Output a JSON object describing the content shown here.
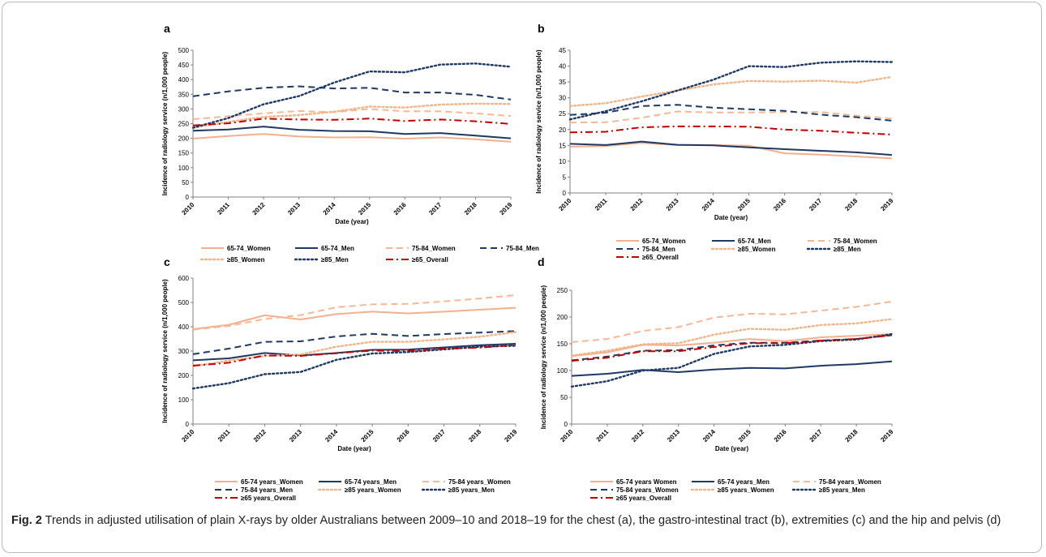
{
  "caption": {
    "fig_label": "Fig. 2",
    "text": "Trends in adjusted utilisation of plain X-rays by older Australians between 2009–10 and 2018–19 for the chest (a), the gastro-intestinal tract (b), extremities (c) and the hip and pelvis (d)"
  },
  "colors": {
    "women_solid": "#f3b08c",
    "men_navy": "#1f3864",
    "women_75_dash": "#f5b896",
    "women_85_dot": "#f4b489",
    "overall_red": "#c00000"
  },
  "chart_data": [
    {
      "panel": "a",
      "type": "line",
      "xlabel": "Date (year)",
      "ylabel": "Incidence of radiology service (n/1,000 people)",
      "ylim": [
        0,
        500
      ],
      "yticks": [
        0,
        50,
        100,
        150,
        200,
        250,
        300,
        350,
        400,
        450,
        500
      ],
      "x": [
        "2010",
        "2011",
        "2012",
        "2013",
        "2014",
        "2015",
        "2016",
        "2017",
        "2018",
        "2019"
      ],
      "legend_position": "bottom",
      "series": [
        {
          "name": "65-74_Women",
          "style": "solid",
          "color": "#f3b08c",
          "values": [
            199,
            208,
            215,
            206,
            203,
            204,
            199,
            203,
            197,
            188
          ]
        },
        {
          "name": "65-74_Men",
          "style": "solid",
          "color": "#1f3864",
          "values": [
            226,
            230,
            240,
            229,
            225,
            224,
            215,
            218,
            209,
            200
          ]
        },
        {
          "name": "75-84_Women",
          "style": "dash",
          "color": "#f5b896",
          "values": [
            265,
            275,
            285,
            293,
            289,
            300,
            292,
            292,
            285,
            276
          ]
        },
        {
          "name": "75-84_Men",
          "style": "dash",
          "color": "#1f3864",
          "values": [
            343,
            360,
            372,
            377,
            370,
            372,
            356,
            356,
            348,
            332
          ]
        },
        {
          "name": "≥85_Women",
          "style": "dot",
          "color": "#f4b489",
          "values": [
            236,
            256,
            273,
            279,
            291,
            308,
            305,
            315,
            318,
            317
          ]
        },
        {
          "name": "≥85_Men",
          "style": "dot",
          "color": "#1f3864",
          "values": [
            236,
            269,
            316,
            344,
            390,
            428,
            425,
            451,
            455,
            444
          ]
        },
        {
          "name": "≥65_Overall",
          "style": "dashdot",
          "color": "#c00000",
          "values": [
            244,
            251,
            267,
            264,
            263,
            267,
            259,
            264,
            258,
            249
          ]
        }
      ]
    },
    {
      "panel": "b",
      "type": "line",
      "xlabel": "Date (year)",
      "ylabel": "Incidence of radiology service (n/1,000 people)",
      "ylim": [
        0,
        45
      ],
      "yticks": [
        0,
        5,
        10,
        15,
        20,
        25,
        30,
        35,
        40,
        45
      ],
      "x": [
        "2010",
        "2011",
        "2012",
        "2013",
        "2014",
        "2015",
        "2016",
        "2017",
        "2018",
        "2019"
      ],
      "legend_position": "bottom",
      "series": [
        {
          "name": "65-74_Women",
          "style": "solid",
          "color": "#f3b08c",
          "values": [
            14.6,
            14.8,
            15.8,
            15.1,
            15.1,
            14.9,
            12.5,
            12.1,
            11.5,
            10.9
          ]
        },
        {
          "name": "65-74_Men",
          "style": "solid",
          "color": "#1f3864",
          "values": [
            15.5,
            15.1,
            16.2,
            15.2,
            15.0,
            14.4,
            13.8,
            13.3,
            12.8,
            12.0
          ]
        },
        {
          "name": "75-84_Women",
          "style": "dash",
          "color": "#f5b896",
          "values": [
            22.2,
            22.3,
            23.7,
            25.7,
            25.4,
            25.4,
            25.5,
            25.5,
            24.4,
            23.5
          ]
        },
        {
          "name": "75-84_Men",
          "style": "dash",
          "color": "#1f3864",
          "values": [
            24.6,
            25.3,
            27.4,
            27.8,
            26.9,
            26.4,
            25.9,
            24.7,
            23.9,
            22.8
          ]
        },
        {
          "name": "≥85_Women",
          "style": "dot",
          "color": "#f4b489",
          "values": [
            27.4,
            28.3,
            30.4,
            32.3,
            34.2,
            35.3,
            35.1,
            35.4,
            34.8,
            36.6
          ]
        },
        {
          "name": "≥85_Men",
          "style": "dot",
          "color": "#1f3864",
          "values": [
            23.2,
            25.8,
            28.9,
            32.3,
            35.7,
            40.0,
            39.7,
            41.1,
            41.5,
            41.3
          ]
        },
        {
          "name": "≥65_Overall",
          "style": "dashdot",
          "color": "#c00000",
          "values": [
            19.1,
            19.3,
            20.7,
            21.0,
            21.0,
            20.9,
            20.0,
            19.6,
            19.0,
            18.4
          ]
        }
      ]
    },
    {
      "panel": "c",
      "type": "line",
      "xlabel": "Date (year)",
      "ylabel": "Incidence of radiology service (n/1,000 people)",
      "ylim": [
        0,
        600
      ],
      "yticks": [
        0,
        100,
        200,
        300,
        400,
        500,
        600
      ],
      "x": [
        "2010",
        "2011",
        "2012",
        "2013",
        "2014",
        "2015",
        "2016",
        "2017",
        "2018",
        "2019"
      ],
      "legend_position": "bottom",
      "series": [
        {
          "name": "65-74 years_Women",
          "style": "solid",
          "color": "#f3b08c",
          "values": [
            390,
            408,
            447,
            430,
            452,
            462,
            455,
            462,
            470,
            478
          ]
        },
        {
          "name": "65-74 years_Men",
          "style": "solid",
          "color": "#1f3864",
          "values": [
            262,
            270,
            292,
            282,
            292,
            305,
            306,
            315,
            324,
            330
          ]
        },
        {
          "name": "75-84 years_Women",
          "style": "dash",
          "color": "#f5b896",
          "values": [
            388,
            403,
            432,
            448,
            480,
            492,
            494,
            504,
            516,
            530
          ]
        },
        {
          "name": "75-84 years_Men",
          "style": "dash",
          "color": "#1f3864",
          "values": [
            287,
            310,
            338,
            340,
            360,
            371,
            362,
            370,
            376,
            382
          ]
        },
        {
          "name": "≥85 years_Women",
          "style": "dot",
          "color": "#f4b489",
          "values": [
            237,
            261,
            280,
            286,
            318,
            338,
            338,
            348,
            359,
            378
          ]
        },
        {
          "name": "≥85 years_Men",
          "style": "dot",
          "color": "#1f3864",
          "values": [
            146,
            168,
            205,
            214,
            264,
            290,
            296,
            307,
            318,
            322
          ]
        },
        {
          "name": "≥65 years_Overall",
          "style": "dashdot",
          "color": "#c00000",
          "values": [
            240,
            252,
            282,
            280,
            291,
            302,
            300,
            310,
            314,
            325
          ]
        }
      ]
    },
    {
      "panel": "d",
      "type": "line",
      "xlabel": "Date (year)",
      "ylabel": "Incidence of radiology service (n/1,000 people)",
      "ylim": [
        0,
        250
      ],
      "yticks": [
        0,
        50,
        100,
        150,
        200,
        250
      ],
      "x": [
        "2010",
        "2011",
        "2012",
        "2013",
        "2014",
        "2015",
        "2016",
        "2017",
        "2018",
        "2019"
      ],
      "legend_position": "bottom",
      "series": [
        {
          "name": "65-74 years Women",
          "style": "solid",
          "color": "#f3b08c",
          "values": [
            127,
            134,
            148,
            147,
            152,
            159,
            155,
            162,
            165,
            168
          ]
        },
        {
          "name": "65-74 years_Men",
          "style": "solid",
          "color": "#1f3864",
          "values": [
            90,
            94,
            101,
            97,
            102,
            105,
            104,
            109,
            112,
            117
          ]
        },
        {
          "name": "75-84 years_Women",
          "style": "dash",
          "color": "#f5b896",
          "values": [
            153,
            159,
            174,
            181,
            199,
            206,
            205,
            212,
            219,
            229
          ]
        },
        {
          "name": "75-84 years_Women",
          "style": "dash",
          "color": "#1f3864",
          "values": [
            119,
            126,
            137,
            138,
            147,
            152,
            152,
            156,
            159,
            166
          ]
        },
        {
          "name": "≥85 years_Women",
          "style": "dot",
          "color": "#f4b489",
          "values": [
            128,
            137,
            149,
            151,
            167,
            178,
            176,
            185,
            188,
            196
          ]
        },
        {
          "name": "≥85 years_Men",
          "style": "dot",
          "color": "#1f3864",
          "values": [
            70,
            80,
            100,
            105,
            131,
            145,
            148,
            155,
            158,
            168
          ]
        },
        {
          "name": "≥65 years_Overall",
          "style": "dashdot",
          "color": "#c00000",
          "values": [
            118,
            124,
            136,
            136,
            144,
            151,
            151,
            156,
            159,
            166
          ]
        }
      ]
    }
  ]
}
